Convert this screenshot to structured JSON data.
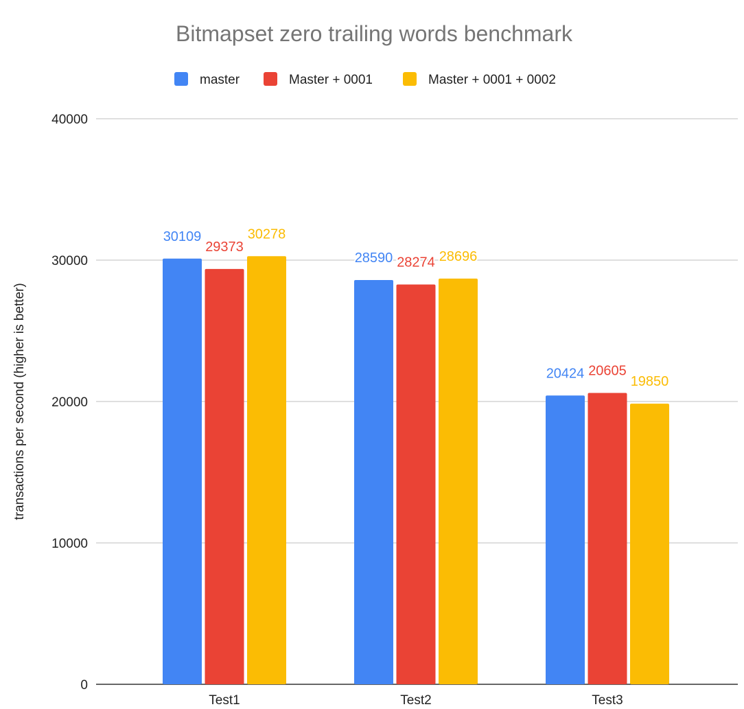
{
  "chart_data": {
    "type": "bar",
    "title": "Bitmapset zero trailing words benchmark",
    "xlabel": "",
    "ylabel": "transactions per second (higher is better)",
    "categories": [
      "Test1",
      "Test2",
      "Test3"
    ],
    "ylim": [
      0,
      40000
    ],
    "yticks": [
      0,
      10000,
      20000,
      30000,
      40000
    ],
    "grid": true,
    "legend_position": "top",
    "series": [
      {
        "name": "master",
        "color": "#4285f4",
        "values": [
          30109,
          28590,
          20424
        ]
      },
      {
        "name": "Master + 0001",
        "color": "#ea4335",
        "values": [
          29373,
          28274,
          20605
        ]
      },
      {
        "name": "Master + 0001 + 0002",
        "color": "#fbbc04",
        "values": [
          30278,
          28696,
          19850
        ]
      }
    ]
  }
}
